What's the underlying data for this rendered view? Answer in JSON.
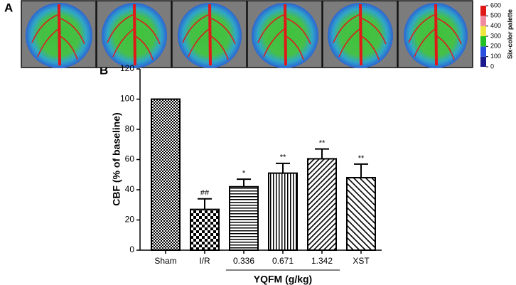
{
  "panel_a": {
    "label": "A",
    "colorbar": {
      "title": "Six-color palette",
      "lim": [
        0,
        600
      ],
      "ticks": [
        0,
        100,
        200,
        300,
        400,
        500,
        600
      ],
      "colors": [
        "#1a1a8c",
        "#2a4fe0",
        "#22c022",
        "#f0e640",
        "#f08aa0",
        "#e01818"
      ]
    }
  },
  "chart_data": {
    "type": "bar",
    "label": "B",
    "ylabel": "CBF (% of baseline)",
    "categories": [
      "Sham",
      "I/R",
      "0.336",
      "0.671",
      "1.342",
      "XST"
    ],
    "values": [
      100,
      27,
      42,
      51,
      60.5,
      48
    ],
    "errors": [
      null,
      7,
      5,
      6.5,
      6.5,
      9
    ],
    "annotations": [
      null,
      "##",
      "*",
      "**",
      "**",
      "**"
    ],
    "group": {
      "label": "YQFM (g/kg)",
      "from": 2,
      "to": 4
    },
    "ylim": [
      0,
      120
    ],
    "yticks": [
      0,
      20,
      40,
      60,
      80,
      100,
      120
    ],
    "color": "#000000"
  }
}
